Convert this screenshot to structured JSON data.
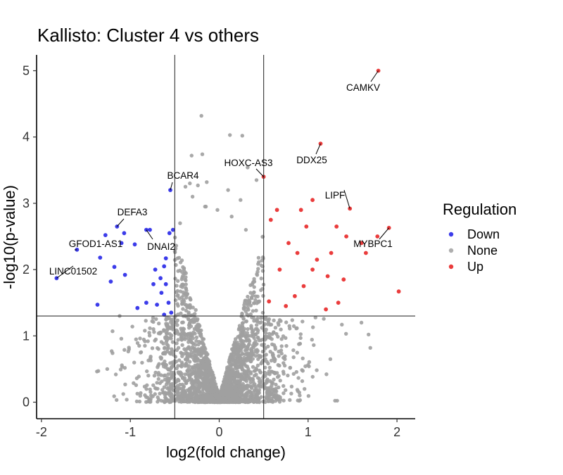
{
  "chart_data": {
    "type": "scatter",
    "title": "Kallisto: Cluster 4 vs others",
    "xlabel": "log2(fold change)",
    "ylabel": "-log10(p-value)",
    "xlim": [
      -2.05,
      2.2
    ],
    "ylim": [
      -0.25,
      5.2
    ],
    "xticks": [
      -2,
      -1,
      0,
      1,
      2
    ],
    "xtick_labels": [
      "-2",
      "-1",
      "0",
      "1",
      "2"
    ],
    "yticks": [
      0,
      1,
      2,
      3,
      4,
      5
    ],
    "ytick_labels": [
      "0",
      "1",
      "2",
      "3",
      "4",
      "5"
    ],
    "thresholds": {
      "fold_change": [
        -0.5,
        0.5
      ],
      "p_value": 1.3
    },
    "grid": false,
    "legend": {
      "title": "Regulation",
      "placement": "right",
      "entries": [
        {
          "name": "Down",
          "color": "#1a1ae6"
        },
        {
          "name": "None",
          "color": "#a0a0a0"
        },
        {
          "name": "Up",
          "color": "#e61a1a"
        }
      ]
    },
    "series": [
      {
        "name": "Down",
        "color": "#1a1ae6",
        "points": [
          [
            -1.83,
            1.87
          ],
          [
            -1.6,
            2.3
          ],
          [
            -1.34,
            2.18
          ],
          [
            -1.28,
            2.52
          ],
          [
            -1.22,
            1.82
          ],
          [
            -1.18,
            2.04
          ],
          [
            -1.15,
            2.65
          ],
          [
            -1.1,
            2.4
          ],
          [
            -1.07,
            2.55
          ],
          [
            -1.06,
            1.92
          ],
          [
            -0.95,
            2.38
          ],
          [
            -0.82,
            2.6
          ],
          [
            -0.78,
            2.6
          ],
          [
            -0.55,
            3.2
          ],
          [
            -0.52,
            2.6
          ],
          [
            -0.56,
            2.55
          ],
          [
            -0.72,
            2.0
          ],
          [
            -0.62,
            2.05
          ],
          [
            -0.6,
            2.17
          ],
          [
            -0.57,
            1.5
          ],
          [
            -1.37,
            1.47
          ],
          [
            -0.92,
            1.42
          ],
          [
            -0.74,
            1.78
          ],
          [
            -0.66,
            1.87
          ],
          [
            -0.62,
            1.32
          ],
          [
            -0.54,
            1.35
          ],
          [
            -0.82,
            1.5
          ],
          [
            -0.7,
            1.47
          ],
          [
            -0.65,
            1.65
          ],
          [
            -0.6,
            1.78
          ]
        ]
      },
      {
        "name": "Up",
        "color": "#e61a1a",
        "points": [
          [
            1.79,
            5.0
          ],
          [
            1.14,
            3.9
          ],
          [
            0.5,
            3.4
          ],
          [
            1.47,
            2.92
          ],
          [
            1.05,
            3.05
          ],
          [
            1.91,
            2.63
          ],
          [
            1.78,
            2.5
          ],
          [
            1.6,
            2.4
          ],
          [
            1.65,
            2.25
          ],
          [
            2.02,
            1.67
          ],
          [
            0.65,
            2.9
          ],
          [
            0.58,
            2.75
          ],
          [
            0.92,
            2.9
          ],
          [
            0.98,
            2.65
          ],
          [
            1.32,
            2.65
          ],
          [
            1.43,
            2.5
          ],
          [
            1.26,
            2.25
          ],
          [
            1.1,
            2.15
          ],
          [
            1.05,
            2.0
          ],
          [
            1.22,
            1.9
          ],
          [
            0.78,
            2.4
          ],
          [
            0.88,
            2.25
          ],
          [
            0.68,
            2.0
          ],
          [
            0.95,
            1.75
          ],
          [
            1.4,
            1.85
          ],
          [
            1.34,
            1.5
          ],
          [
            1.2,
            1.4
          ],
          [
            0.56,
            1.52
          ],
          [
            0.75,
            1.45
          ],
          [
            0.85,
            1.6
          ]
        ]
      }
    ],
    "none_series": {
      "name": "None",
      "color": "#a0a0a0",
      "note": "several thousand non-significant genes forming the volcano shape; sampled points",
      "points": [
        [
          -0.2,
          4.32
        ],
        [
          0.12,
          4.03
        ],
        [
          0.26,
          4.02
        ],
        [
          -0.31,
          3.72
        ],
        [
          -0.19,
          3.74
        ],
        [
          0.32,
          3.54
        ],
        [
          -0.24,
          3.27
        ],
        [
          -0.33,
          3.3
        ],
        [
          -0.38,
          3.25
        ],
        [
          -0.14,
          3.32
        ],
        [
          0.1,
          3.2
        ],
        [
          -0.3,
          3.1
        ],
        [
          -0.15,
          2.95
        ],
        [
          -0.02,
          2.9
        ],
        [
          0.24,
          3.05
        ],
        [
          -0.16,
          2.95
        ],
        [
          0.14,
          2.8
        ],
        [
          0.42,
          3.35
        ],
        [
          -0.44,
          2.7
        ],
        [
          0.3,
          2.6
        ],
        [
          -1.12,
          1.3
        ],
        [
          -1.2,
          1.07
        ],
        [
          -1.36,
          0.47
        ],
        [
          -1.26,
          0.5
        ],
        [
          -1.2,
          0.74
        ],
        [
          -1.21,
          0.77
        ],
        [
          -0.9,
          0.85
        ],
        [
          0.94,
          0.66
        ],
        [
          1.0,
          0.56
        ],
        [
          1.25,
          0.65
        ],
        [
          1.6,
          1.2
        ],
        [
          1.68,
          1.02
        ],
        [
          1.7,
          0.82
        ],
        [
          1.38,
          1.17
        ],
        [
          0.96,
          0.2
        ]
      ]
    },
    "annotations": [
      {
        "text": "CAMKV",
        "x": 1.79,
        "y": 5.0
      },
      {
        "text": "DDX25",
        "x": 1.14,
        "y": 3.9
      },
      {
        "text": "HOXC-AS3",
        "x": 0.5,
        "y": 3.4
      },
      {
        "text": "LIPF",
        "x": 1.47,
        "y": 2.92
      },
      {
        "text": "MYBPC1",
        "x": 1.91,
        "y": 2.63
      },
      {
        "text": "BCAR4",
        "x": -0.55,
        "y": 3.2
      },
      {
        "text": "DEFA3",
        "x": -1.15,
        "y": 2.65
      },
      {
        "text": "DNAI2",
        "x": -0.82,
        "y": 2.6
      },
      {
        "text": "GFOD1-AS1",
        "x": -1.6,
        "y": 2.3
      },
      {
        "text": "LINC01502",
        "x": -1.83,
        "y": 1.87
      }
    ]
  }
}
